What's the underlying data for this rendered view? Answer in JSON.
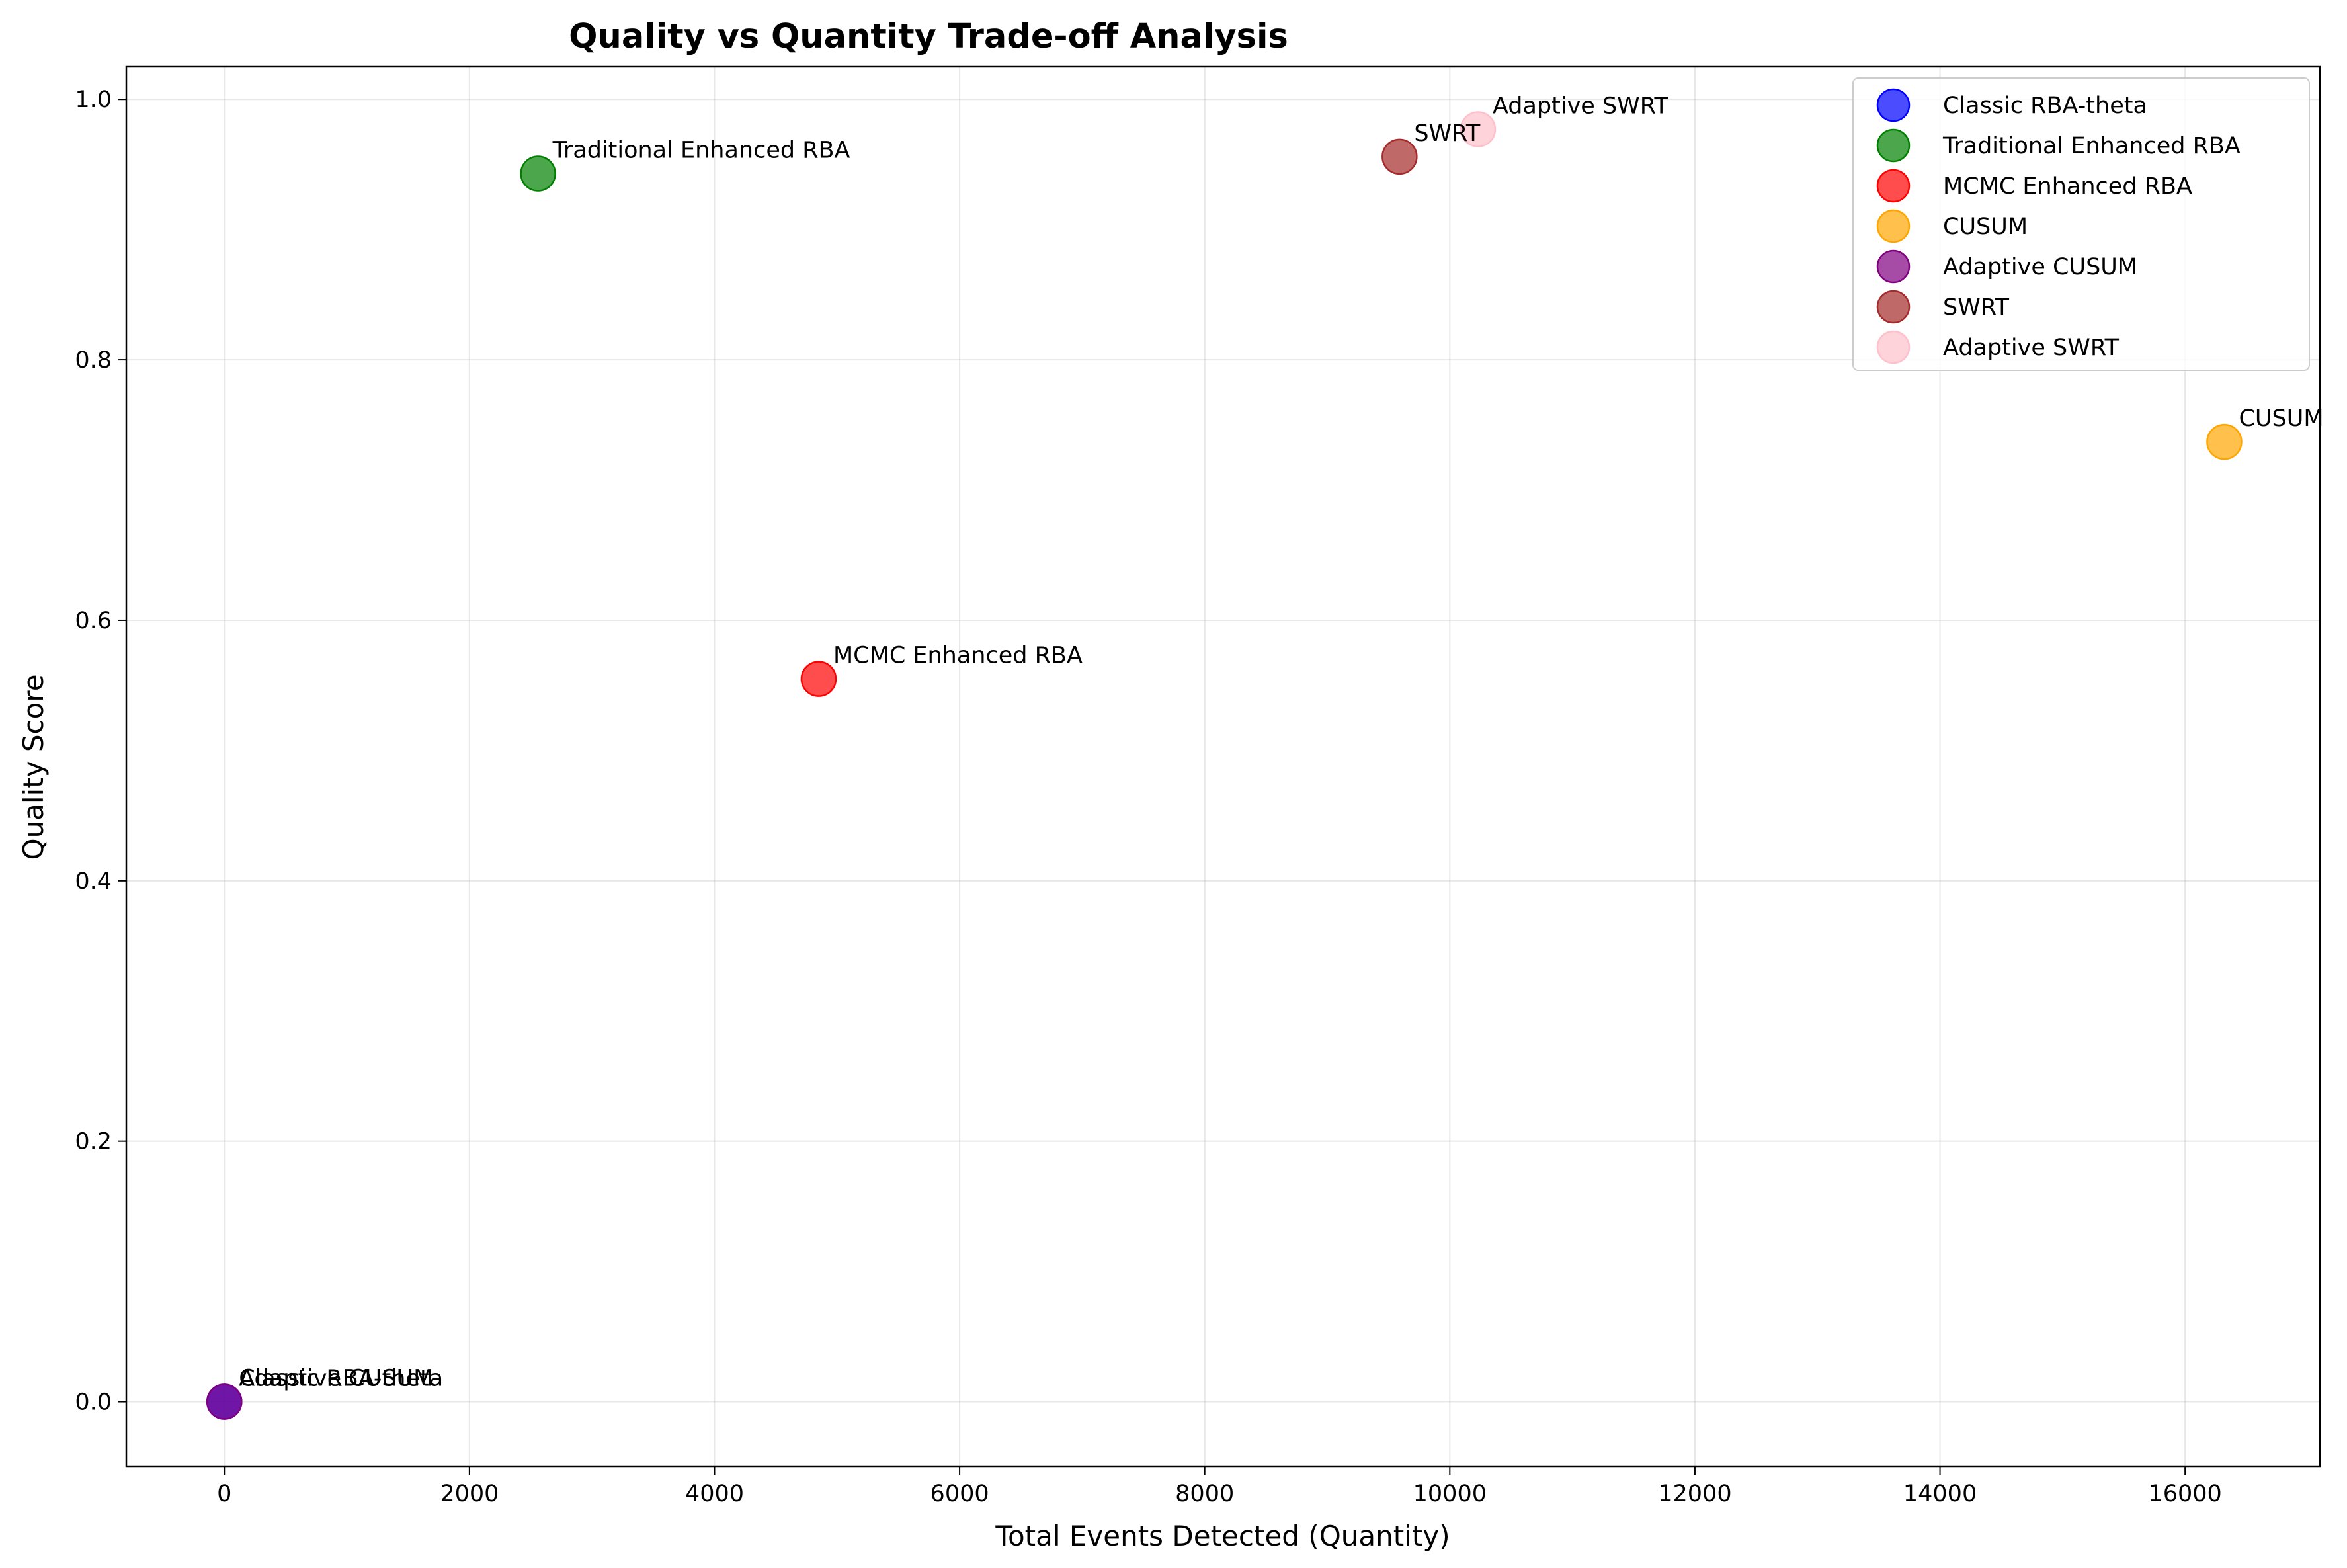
{
  "chart_data": {
    "type": "scatter",
    "title": "Quality vs Quantity Trade-off Analysis",
    "xlabel": "Total Events Detected (Quantity)",
    "ylabel": "Quality Score",
    "xlim": [
      -800,
      17100
    ],
    "ylim": [
      -0.05,
      1.025
    ],
    "xticks": [
      0,
      2000,
      4000,
      6000,
      8000,
      10000,
      12000,
      14000,
      16000
    ],
    "xtick_labels": [
      "0",
      "2000",
      "4000",
      "6000",
      "8000",
      "10000",
      "12000",
      "14000",
      "16000"
    ],
    "yticks": [
      0.0,
      0.2,
      0.4,
      0.6,
      0.8,
      1.0
    ],
    "ytick_labels": [
      "0.0",
      "0.2",
      "0.4",
      "0.6",
      "0.8",
      "1.0"
    ],
    "grid": true,
    "legend_position": "top-right",
    "series": [
      {
        "name": "Classic RBA-theta",
        "x": 0,
        "y": 0.0,
        "color": "#0000ff",
        "label": "Classic RBA-theta"
      },
      {
        "name": "Traditional Enhanced RBA",
        "x": 2560,
        "y": 0.943,
        "color": "#008000",
        "label": "Traditional Enhanced RBA"
      },
      {
        "name": "MCMC Enhanced RBA",
        "x": 4850,
        "y": 0.555,
        "color": "#ff0000",
        "label": "MCMC Enhanced RBA"
      },
      {
        "name": "CUSUM",
        "x": 16320,
        "y": 0.737,
        "color": "#ffa500",
        "label": "CUSUM"
      },
      {
        "name": "Adaptive CUSUM",
        "x": 0,
        "y": 0.0,
        "color": "#800080",
        "label": "Adaptive CUSUM"
      },
      {
        "name": "SWRT",
        "x": 9590,
        "y": 0.956,
        "color": "#a52a2a",
        "label": "SWRT"
      },
      {
        "name": "Adaptive SWRT",
        "x": 10230,
        "y": 0.977,
        "color": "#ffc0cb",
        "label": "Adaptive SWRT"
      }
    ]
  }
}
